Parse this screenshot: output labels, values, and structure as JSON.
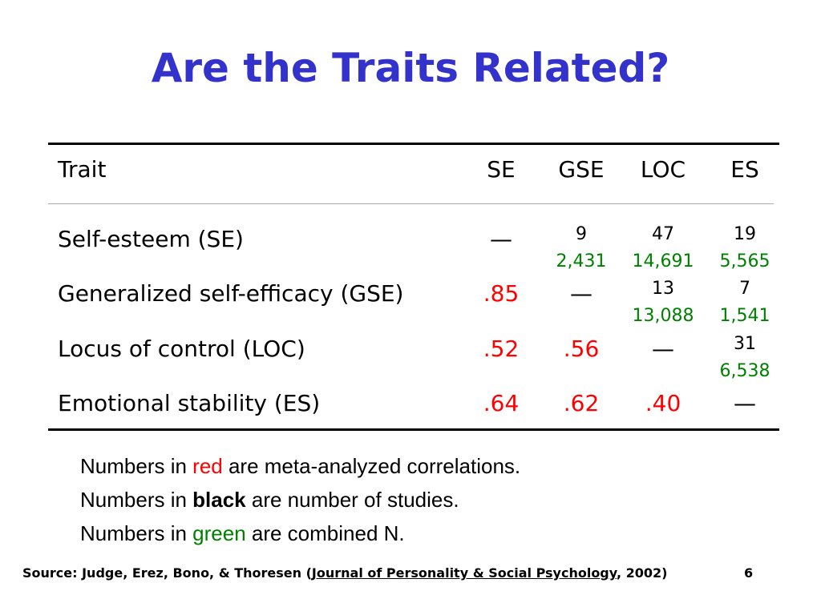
{
  "title": "Are the Traits Related?",
  "table": {
    "headers": [
      "Trait",
      "SE",
      "GSE",
      "LOC",
      "ES"
    ],
    "rows": [
      {
        "label": "Self-esteem (SE)",
        "SE": "—",
        "GSE": {
          "studies": "9",
          "n": "2,431"
        },
        "LOC": {
          "studies": "47",
          "n": "14,691"
        },
        "ES": {
          "studies": "19",
          "n": "5,565"
        }
      },
      {
        "label": "Generalized self-efficacy (GSE)",
        "SE": ".85",
        "GSE": "—",
        "LOC": {
          "studies": "13",
          "n": "13,088"
        },
        "ES": {
          "studies": "7",
          "n": "1,541"
        }
      },
      {
        "label": "Locus of control (LOC)",
        "SE": ".52",
        "GSE": ".56",
        "LOC": "—",
        "ES": {
          "studies": "31",
          "n": "6,538"
        }
      },
      {
        "label": "Emotional stability (ES)",
        "SE": ".64",
        "GSE": ".62",
        "LOC": ".40",
        "ES": "—"
      }
    ]
  },
  "notes": {
    "line1": {
      "pre": "Numbers in ",
      "key": "red",
      "post": " are meta-analyzed correlations."
    },
    "line2": {
      "pre": "Numbers in ",
      "key": "black",
      "post": " are number of studies."
    },
    "line3": {
      "pre": "Numbers in ",
      "key": "green",
      "post": " are combined N."
    }
  },
  "source": {
    "pre": "Source: Judge, Erez, Bono, & Thoresen (",
    "journal": "Journal of Personality & Social Psychology",
    "post": ", 2002)"
  },
  "page_number": "6",
  "colors": {
    "title": "#3333cc",
    "correlation": "#ff0000",
    "combined_n": "#008000",
    "studies": "#000000"
  }
}
